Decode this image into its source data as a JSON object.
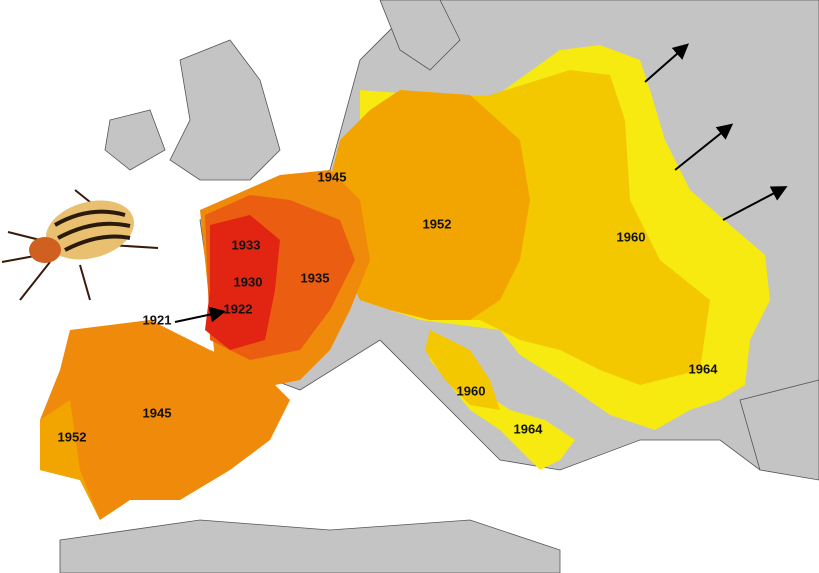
{
  "labels": [
    "1945",
    "1933",
    "1930",
    "1935",
    "1922",
    "1921",
    "1952",
    "1960",
    "1945",
    "1952",
    "1960",
    "1964",
    "1964"
  ]
}
